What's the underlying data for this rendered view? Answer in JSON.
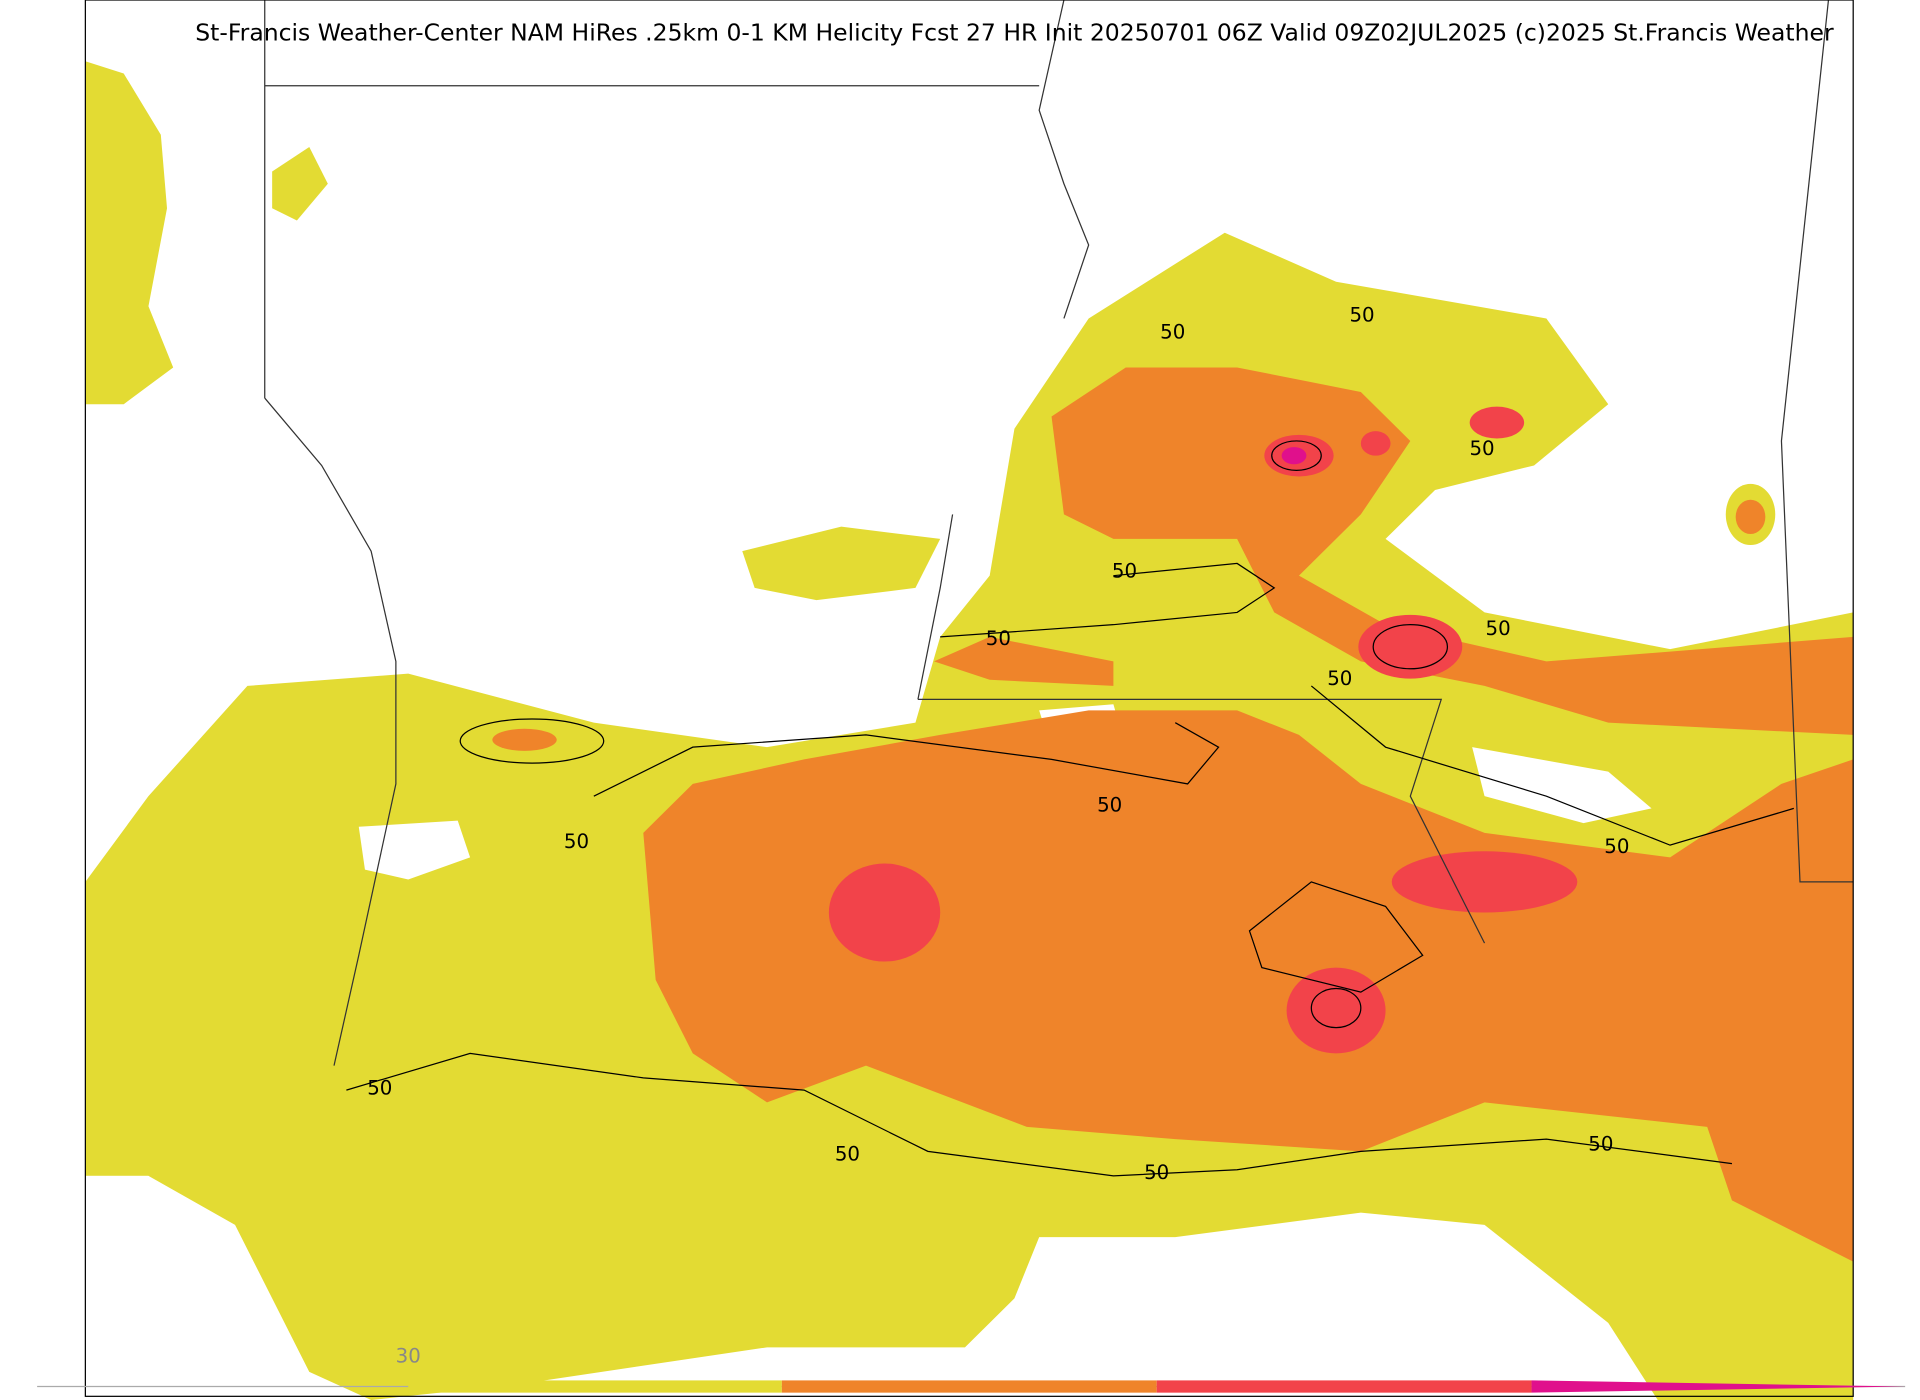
{
  "header": {
    "title": "St-Francis Weather-Center NAM HiRes .25km 0-1 KM Helicity Fcst 27 HR Init 20250701 06Z  Valid 09Z02JUL2025    (c)2025 St.Francis Weather"
  },
  "contour_labels": [
    "50",
    "50",
    "50",
    "50",
    "50",
    "50",
    "50",
    "50",
    "50",
    "50",
    "50",
    "50",
    "50",
    "50"
  ],
  "colorbar": {
    "labels": [
      "30"
    ]
  }
}
